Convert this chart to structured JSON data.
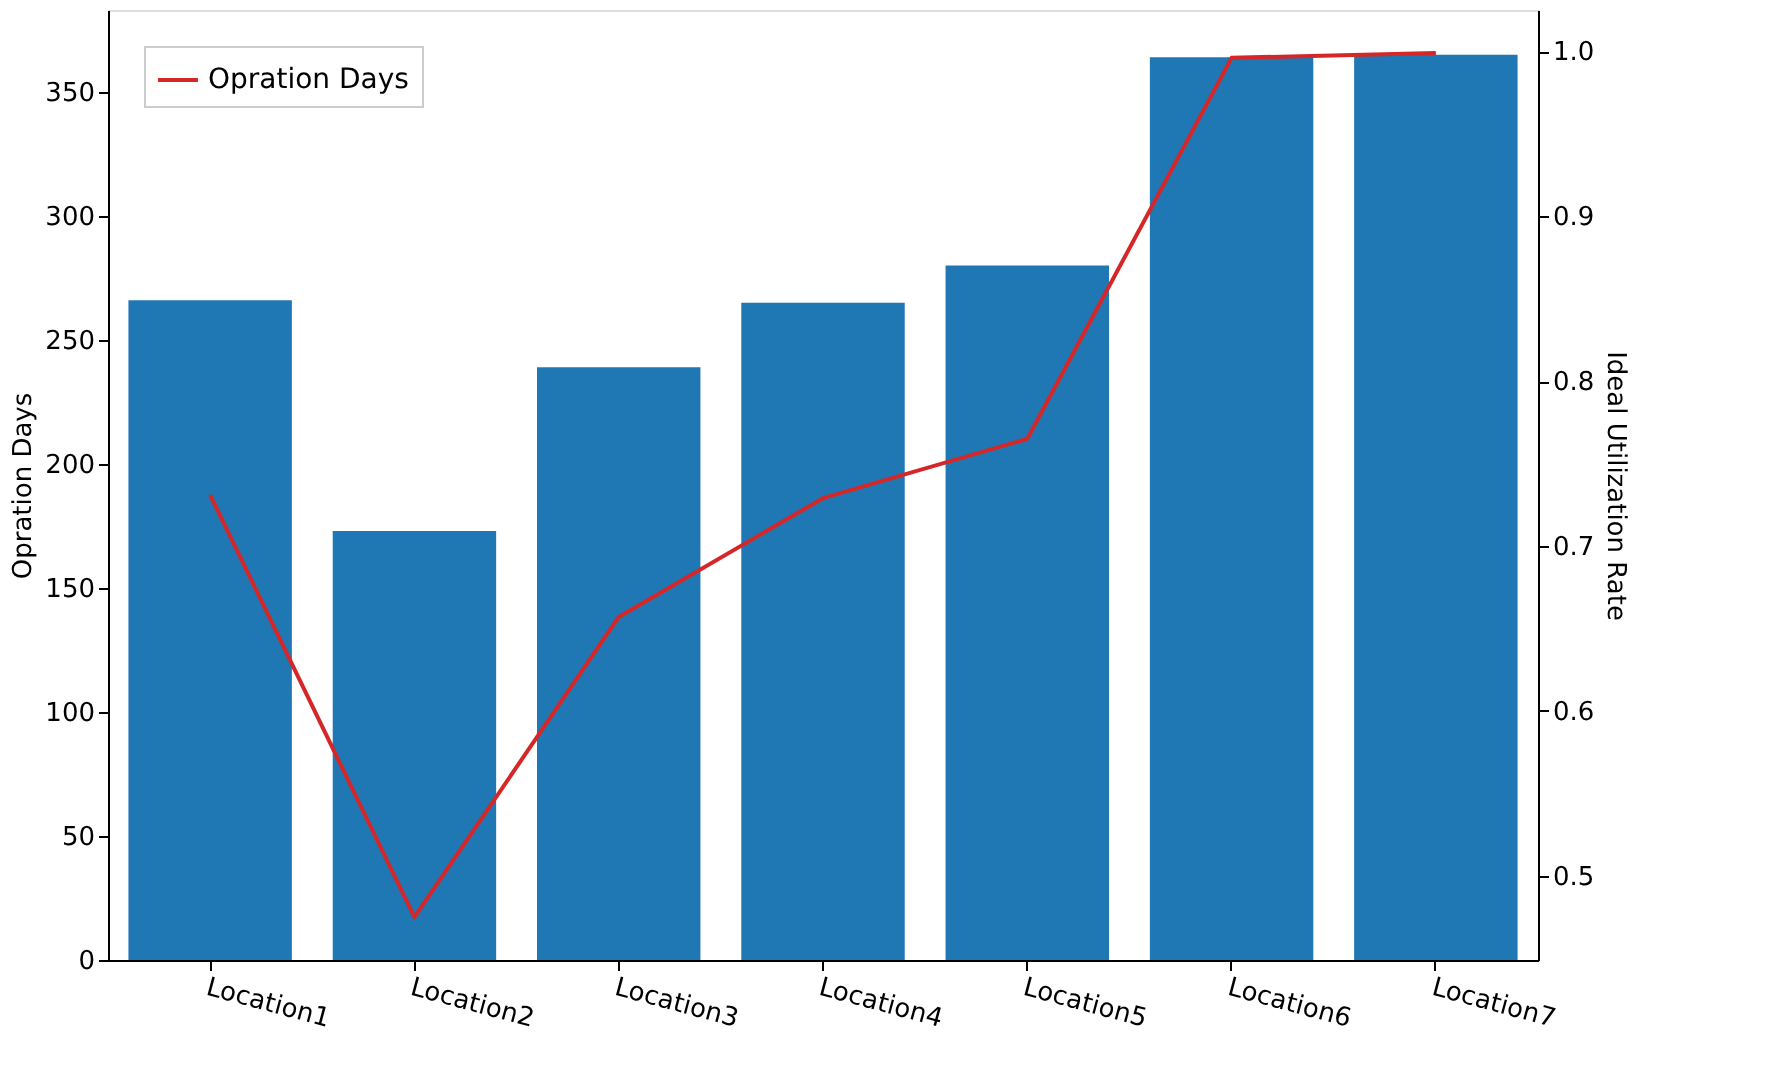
{
  "chart_data": {
    "type": "bar",
    "ylabel": "Opration Days",
    "y2label": "Ideal Utilization Rate",
    "categories": [
      "Location1",
      "Location2",
      "Location3",
      "Location4",
      "Location5",
      "Location6",
      "Location7"
    ],
    "series": [
      {
        "color": "#1f77b4",
        "values": [
          266,
          173,
          239,
          265,
          280,
          364,
          365
        ]
      },
      {
        "type": "line",
        "name": "Opration Days",
        "axis": "y2",
        "color": "#d62728",
        "values": [
          0.731,
          0.475,
          0.657,
          0.729,
          0.765,
          0.996,
          0.999
        ]
      }
    ],
    "ylim": [
      0,
      383
    ],
    "yticks": [
      0,
      50,
      100,
      150,
      200,
      250,
      300,
      350
    ],
    "y2lim": [
      0.449,
      1.025
    ],
    "y2ticks": [
      0.5,
      0.6,
      0.7,
      0.8,
      0.9,
      {
        "value": 1.0,
        "label": "1.0"
      }
    ],
    "grid": false,
    "legend": "top left",
    "line_style": "solid",
    "marker": "none"
  }
}
